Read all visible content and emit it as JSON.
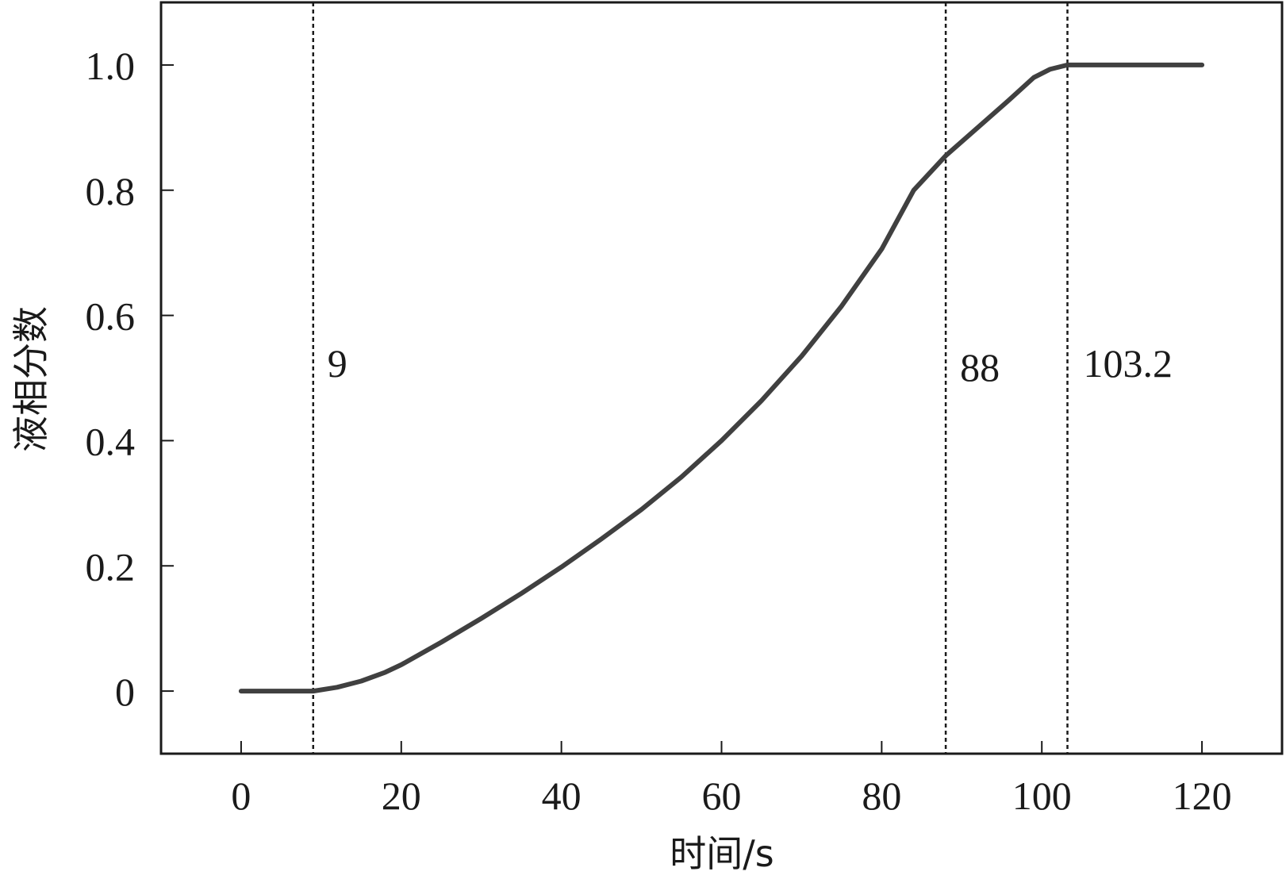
{
  "chart_data": {
    "type": "line",
    "title": "",
    "xlabel": "时间/s",
    "ylabel": "液相分数",
    "xlim": [
      -10,
      130
    ],
    "ylim": [
      -0.1,
      1.1
    ],
    "xticks": [
      0,
      20,
      40,
      60,
      80,
      100,
      120
    ],
    "xtick_labels": [
      "0",
      "20",
      "40",
      "60",
      "80",
      "100",
      "120"
    ],
    "yticks": [
      0,
      0.2,
      0.4,
      0.6,
      0.8,
      1.0
    ],
    "ytick_labels": [
      "0",
      "0.2",
      "0.4",
      "0.6",
      "0.8",
      "1.0"
    ],
    "grid": false,
    "line_color": "#404040",
    "series": [
      {
        "x": [
          0,
          5,
          9,
          12,
          15,
          18,
          20,
          25,
          30,
          35,
          40,
          45,
          50,
          55,
          60,
          65,
          70,
          75,
          80,
          84,
          88,
          92,
          96,
          99,
          101,
          103.2,
          110,
          120
        ],
        "y": [
          0,
          0,
          0,
          0.006,
          0.016,
          0.03,
          0.042,
          0.078,
          0.116,
          0.156,
          0.198,
          0.243,
          0.29,
          0.342,
          0.4,
          0.464,
          0.535,
          0.615,
          0.706,
          0.8,
          0.855,
          0.9,
          0.945,
          0.98,
          0.993,
          1.0,
          1.0,
          1.0
        ]
      }
    ],
    "vlines": [
      {
        "x": 9,
        "label": "9"
      },
      {
        "x": 88,
        "label": "88"
      },
      {
        "x": 103.2,
        "label": "103.2"
      }
    ]
  }
}
